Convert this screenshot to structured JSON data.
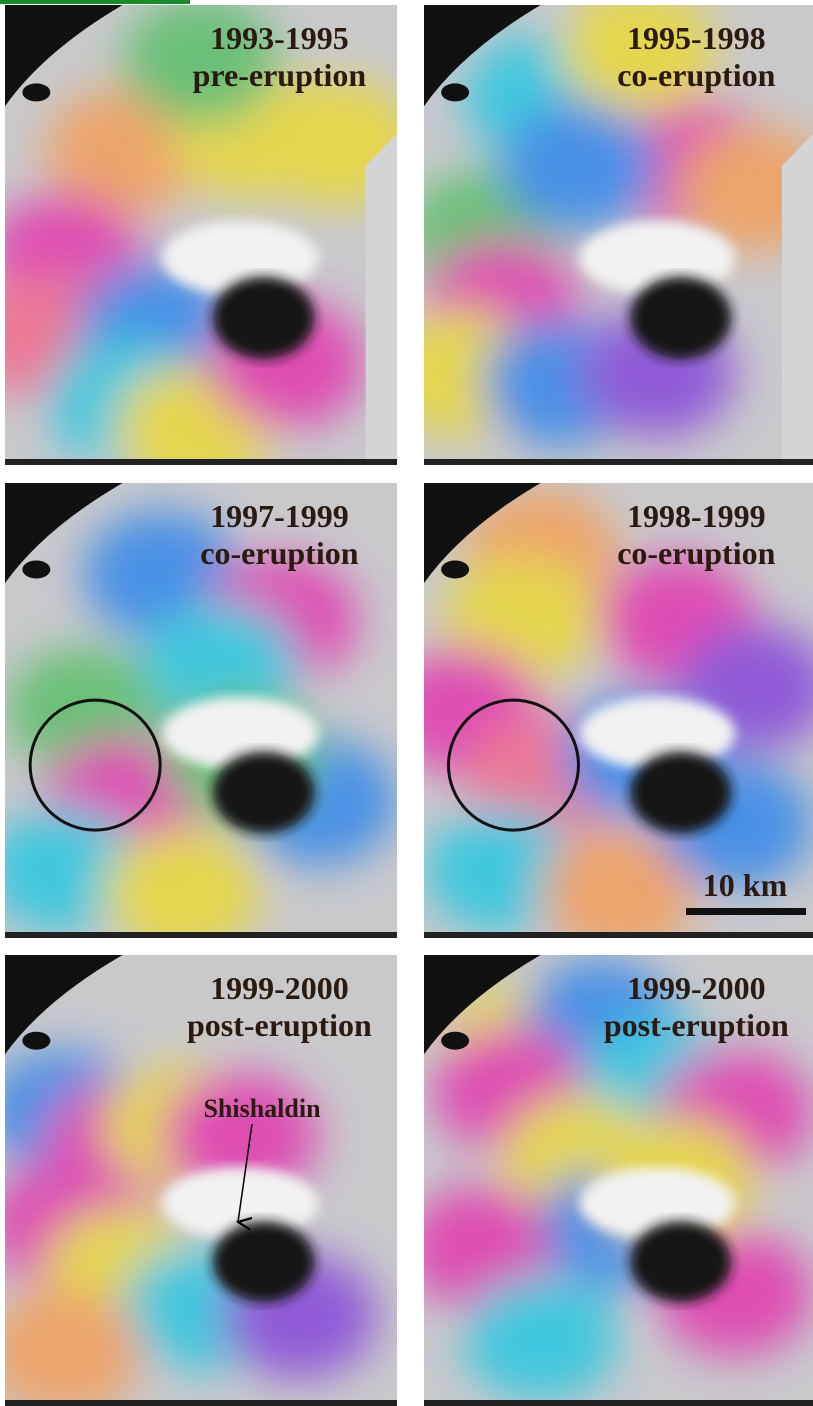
{
  "panels": [
    {
      "period": "1993-1995",
      "phase": "pre-eruption"
    },
    {
      "period": "1995-1998",
      "phase": "co-eruption"
    },
    {
      "period": "1997-1999",
      "phase": "co-eruption"
    },
    {
      "period": "1998-1999",
      "phase": "co-eruption"
    },
    {
      "period": "1999-2000",
      "phase": "post-eruption"
    },
    {
      "period": "1999-2000",
      "phase": "post-eruption"
    }
  ],
  "annotations": {
    "volcano": "Shishaldin",
    "scale": "10 km"
  }
}
